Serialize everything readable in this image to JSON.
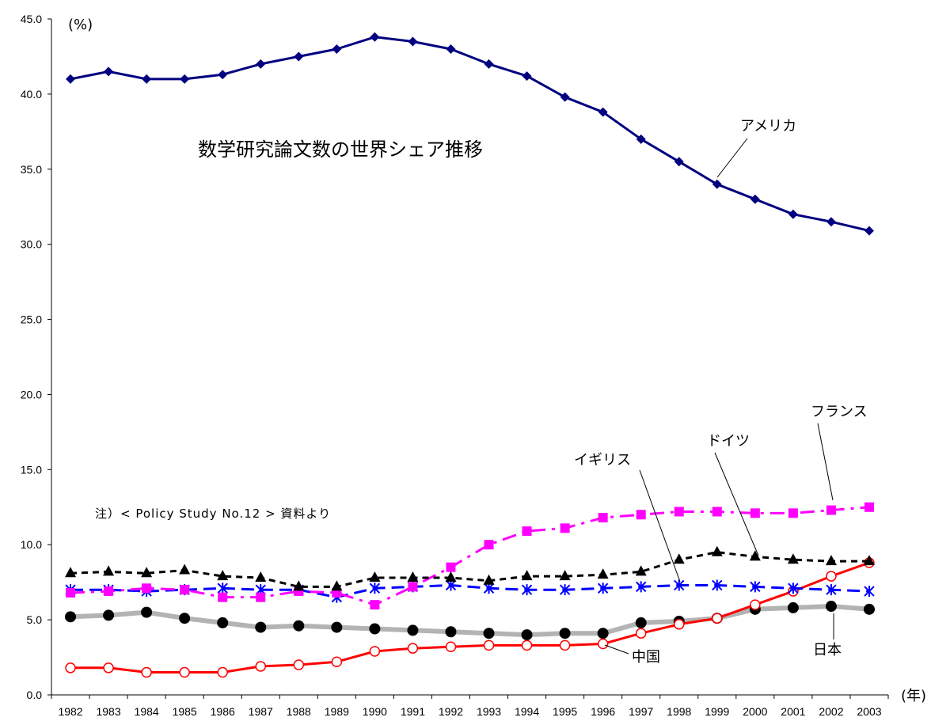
{
  "chart_data": {
    "type": "line",
    "title": "数学研究論文数の世界シェア推移",
    "ylabel": "(%)",
    "xlabel": "(年)",
    "note": "注）< Policy  Study  No.12 >  資料より",
    "ylim": [
      0,
      45
    ],
    "yticks": [
      "0.0",
      "5.0",
      "10.0",
      "15.0",
      "20.0",
      "25.0",
      "30.0",
      "35.0",
      "40.0",
      "45.0"
    ],
    "x": [
      "1982",
      "1983",
      "1984",
      "1985",
      "1986",
      "1987",
      "1988",
      "1989",
      "1990",
      "1991",
      "1992",
      "1993",
      "1994",
      "1995",
      "1996",
      "1997",
      "1998",
      "1999",
      "2000",
      "2001",
      "2002",
      "2003"
    ],
    "series": [
      {
        "name": "アメリカ",
        "color": "#000080",
        "marker": "diamond",
        "dash": "solid",
        "values": [
          41.0,
          41.5,
          41.0,
          41.0,
          41.3,
          42.0,
          42.5,
          43.0,
          43.8,
          43.5,
          43.0,
          42.0,
          41.2,
          39.8,
          38.8,
          37.0,
          35.5,
          34.0,
          33.0,
          32.0,
          31.5,
          30.9
        ]
      },
      {
        "name": "フランス",
        "color": "#ff00ff",
        "marker": "square",
        "dash": "dashdot",
        "values": [
          6.8,
          6.9,
          7.1,
          7.0,
          6.5,
          6.5,
          6.9,
          6.8,
          6.0,
          7.2,
          8.5,
          10.0,
          10.9,
          11.1,
          11.8,
          12.0,
          12.2,
          12.2,
          12.1,
          12.1,
          12.3,
          12.5
        ]
      },
      {
        "name": "ドイツ",
        "color": "#000000",
        "marker": "triangle",
        "dash": "dashed",
        "values": [
          8.1,
          8.2,
          8.1,
          8.3,
          7.9,
          7.8,
          7.2,
          7.2,
          7.8,
          7.8,
          7.8,
          7.6,
          7.9,
          7.9,
          8.0,
          8.2,
          9.0,
          9.5,
          9.2,
          9.0,
          8.9,
          8.9
        ]
      },
      {
        "name": "イギリス",
        "color": "#0000ff",
        "marker": "asterisk",
        "dash": "longdash",
        "values": [
          7.0,
          7.0,
          6.9,
          7.0,
          7.1,
          7.0,
          7.0,
          6.5,
          7.1,
          7.2,
          7.3,
          7.1,
          7.0,
          7.0,
          7.1,
          7.2,
          7.3,
          7.3,
          7.2,
          7.1,
          7.0,
          6.9
        ]
      },
      {
        "name": "日本",
        "color": "#000000",
        "marker": "circle-filled",
        "dash": "solid-gray",
        "values": [
          5.2,
          5.3,
          5.5,
          5.1,
          4.8,
          4.5,
          4.6,
          4.5,
          4.4,
          4.3,
          4.2,
          4.1,
          4.0,
          4.1,
          4.1,
          4.8,
          4.9,
          5.1,
          5.7,
          5.8,
          5.9,
          5.7
        ]
      },
      {
        "name": "中国",
        "color": "#ff0000",
        "marker": "circle-open",
        "dash": "solid",
        "values": [
          1.8,
          1.8,
          1.5,
          1.5,
          1.5,
          1.9,
          2.0,
          2.2,
          2.9,
          3.1,
          3.2,
          3.3,
          3.3,
          3.3,
          3.4,
          4.1,
          4.7,
          5.1,
          6.0,
          6.9,
          7.9,
          8.8
        ]
      }
    ],
    "grid": false,
    "legend": "inline-callouts"
  }
}
